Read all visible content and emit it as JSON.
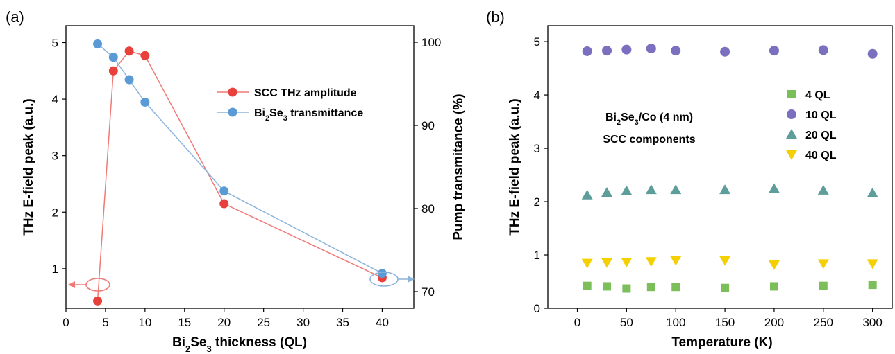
{
  "panels": {
    "a": "(a)",
    "b": "(b)"
  },
  "colors": {
    "red": "#e8403a",
    "red_line": "#f07a78",
    "blue": "#5b9bd5",
    "blue_line": "#8db4db",
    "green": "#7cbf5a",
    "purple": "#7b70c0",
    "teal": "#5e9e9a",
    "yellow": "#f5d000"
  },
  "chart_data": [
    {
      "type": "line",
      "panel": "(a)",
      "xlabel": "Bi2Se3 thickness (QL)",
      "xlabel_parts": {
        "a": "Bi",
        "b": "2",
        "c": "Se",
        "d": "3",
        "e": " thickness (QL)"
      },
      "ylabel": "THz E-field peak (a.u.)",
      "y2label": "Pump transmitance (%)",
      "xlim": [
        0,
        44
      ],
      "ylim": [
        0.3,
        5.3
      ],
      "y2lim": [
        68,
        102
      ],
      "xticks": [
        "0",
        "5",
        "10",
        "15",
        "20",
        "25",
        "30",
        "35",
        "40"
      ],
      "yticks": [
        "1",
        "2",
        "3",
        "4",
        "5"
      ],
      "y2ticks": [
        "70",
        "80",
        "90",
        "100"
      ],
      "legend_position": "top-right",
      "series": [
        {
          "name": "SCC THz amplitude",
          "axis": "left",
          "color": "#e8403a",
          "x": [
            4,
            6,
            8,
            10,
            20,
            40
          ],
          "y": [
            0.43,
            4.5,
            4.85,
            4.77,
            2.15,
            0.84
          ]
        },
        {
          "name": "Bi2Se3 transmittance",
          "name_parts": {
            "a": "Bi",
            "b": "2",
            "c": "Se",
            "d": "3",
            "e": " transmittance"
          },
          "axis": "right",
          "color": "#5b9bd5",
          "x": [
            4,
            6,
            8,
            10,
            20,
            40
          ],
          "y": [
            99.8,
            98.2,
            95.5,
            92.8,
            82.1,
            72.2
          ]
        }
      ]
    },
    {
      "type": "scatter",
      "panel": "(b)",
      "xlabel": "Temperature (K)",
      "ylabel": "THz E-field peak (a.u.)",
      "xlim": [
        -30,
        320
      ],
      "ylim": [
        0,
        5.3
      ],
      "xticks": [
        "0",
        "50",
        "100",
        "150",
        "200",
        "250",
        "300"
      ],
      "yticks": [
        "0",
        "1",
        "2",
        "3",
        "4",
        "5"
      ],
      "annotation": {
        "line1_parts": {
          "a": "Bi",
          "b": "2",
          "c": "Se",
          "d": "3",
          "e": "/Co (4 nm)"
        },
        "line2": "SCC components"
      },
      "legend_position": "top-right",
      "x": [
        10,
        30,
        50,
        75,
        100,
        150,
        200,
        250,
        300
      ],
      "series": [
        {
          "name": "4 QL",
          "marker": "square",
          "color": "#7cbf5a",
          "values": [
            0.42,
            0.41,
            0.37,
            0.4,
            0.4,
            0.38,
            0.41,
            0.42,
            0.44
          ]
        },
        {
          "name": "10 QL",
          "marker": "circle",
          "color": "#7b70c0",
          "values": [
            4.82,
            4.83,
            4.85,
            4.87,
            4.83,
            4.81,
            4.83,
            4.84,
            4.77
          ]
        },
        {
          "name": "20 QL",
          "marker": "triangle-up",
          "color": "#5e9e9a",
          "values": [
            2.12,
            2.17,
            2.2,
            2.22,
            2.22,
            2.22,
            2.24,
            2.21,
            2.16
          ]
        },
        {
          "name": "40 QL",
          "marker": "triangle-down",
          "color": "#f5d000",
          "values": [
            0.85,
            0.86,
            0.87,
            0.88,
            0.9,
            0.9,
            0.82,
            0.84,
            0.84
          ]
        }
      ]
    }
  ]
}
